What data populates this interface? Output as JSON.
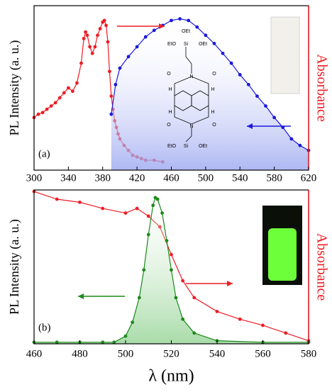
{
  "chart_data": [
    {
      "type": "line",
      "panel_label": "(a)",
      "ylabel": "PL Intensity (a. u.)",
      "y2label": "Absorbance",
      "xlim": [
        300,
        620
      ],
      "xticks": [
        300,
        340,
        380,
        420,
        460,
        500,
        540,
        580,
        620
      ],
      "ylim": [
        0,
        1
      ],
      "y2lim": [
        0,
        1
      ],
      "series": [
        {
          "color": "#ee1c24",
          "axis": "y2",
          "x": [
            300,
            305,
            310,
            315,
            320,
            325,
            330,
            335,
            340,
            345,
            350,
            355,
            358,
            360,
            362,
            365,
            368,
            371,
            374,
            377,
            380,
            382,
            384,
            386,
            388,
            390,
            392,
            394,
            396,
            398,
            400,
            405,
            410,
            415,
            420,
            425,
            430,
            440,
            450
          ],
          "values": [
            0.32,
            0.34,
            0.35,
            0.37,
            0.39,
            0.41,
            0.44,
            0.47,
            0.5,
            0.48,
            0.53,
            0.65,
            0.8,
            0.84,
            0.82,
            0.75,
            0.71,
            0.75,
            0.82,
            0.86,
            0.9,
            0.91,
            0.88,
            0.78,
            0.6,
            0.45,
            0.37,
            0.3,
            0.26,
            0.22,
            0.19,
            0.15,
            0.12,
            0.09,
            0.08,
            0.07,
            0.06,
            0.06,
            0.05
          ]
        },
        {
          "color": "#1a1adc",
          "area": true,
          "x": [
            390,
            395,
            400,
            410,
            420,
            430,
            440,
            450,
            460,
            470,
            480,
            490,
            500,
            510,
            520,
            530,
            540,
            550,
            560,
            570,
            580,
            590,
            600,
            610,
            620
          ],
          "values": [
            0.34,
            0.52,
            0.62,
            0.69,
            0.75,
            0.81,
            0.85,
            0.88,
            0.91,
            0.92,
            0.91,
            0.87,
            0.82,
            0.77,
            0.71,
            0.65,
            0.58,
            0.52,
            0.45,
            0.39,
            0.32,
            0.26,
            0.19,
            0.15,
            0.12
          ]
        }
      ]
    },
    {
      "type": "line",
      "panel_label": "(b)",
      "ylabel": "PL Intensity (a. u.)",
      "y2label": "Absorbance",
      "xlabel": "λ (nm)",
      "xlim": [
        460,
        580
      ],
      "xticks": [
        460,
        480,
        500,
        520,
        540,
        560,
        580
      ],
      "ylim": [
        0,
        1
      ],
      "y2lim": [
        0,
        1
      ],
      "series": [
        {
          "color": "#ee1c24",
          "axis": "y2",
          "x": [
            460,
            470,
            480,
            490,
            500,
            505,
            510,
            515,
            520,
            525,
            530,
            540,
            550,
            560,
            570,
            580
          ],
          "values": [
            0.99,
            0.94,
            0.92,
            0.88,
            0.85,
            0.88,
            0.83,
            0.76,
            0.58,
            0.41,
            0.3,
            0.21,
            0.16,
            0.12,
            0.07,
            0.02
          ]
        },
        {
          "color": "#1a8a1a",
          "area": true,
          "x": [
            460,
            470,
            480,
            490,
            495,
            500,
            503,
            506,
            508,
            510,
            512,
            513,
            514,
            516,
            518,
            520,
            522,
            525,
            530,
            540,
            560,
            580
          ],
          "values": [
            0.01,
            0.01,
            0.01,
            0.01,
            0.01,
            0.05,
            0.14,
            0.3,
            0.48,
            0.71,
            0.9,
            0.95,
            0.94,
            0.85,
            0.67,
            0.48,
            0.3,
            0.16,
            0.07,
            0.02,
            0.01,
            0.01
          ]
        }
      ]
    }
  ],
  "structure": {
    "labels": [
      "OEt",
      "EtO",
      "Si",
      "OEt",
      "O",
      "N",
      "O",
      "H",
      "H",
      "H",
      "H",
      "O",
      "N",
      "O",
      "EtO",
      "Si",
      "OEt"
    ]
  }
}
